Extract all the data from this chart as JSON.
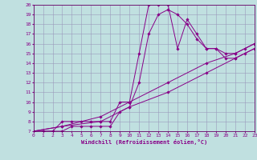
{
  "xlabel": "Windchill (Refroidissement éolien,°C)",
  "bg_color": "#c0e0e0",
  "line_color": "#880088",
  "grid_color": "#9999bb",
  "spine_color": "#660066",
  "xmin": 0,
  "xmax": 23,
  "ymin": 7,
  "ymax": 20,
  "lines": [
    {
      "x": [
        0,
        1,
        2,
        3,
        4,
        5,
        6,
        7,
        8,
        9,
        10,
        11,
        12,
        13,
        14,
        15,
        16,
        17,
        18,
        19,
        20,
        21,
        22,
        23
      ],
      "y": [
        7,
        7,
        7,
        8,
        8,
        8,
        8,
        8,
        8,
        10,
        10,
        15,
        20,
        20,
        20,
        15.5,
        18.5,
        17,
        15.5,
        15.5,
        15,
        15,
        15.5,
        16
      ]
    },
    {
      "x": [
        0,
        1,
        2,
        3,
        4,
        5,
        6,
        7,
        8,
        9,
        10,
        11,
        12,
        13,
        14,
        15,
        16,
        17,
        18,
        19,
        20,
        21,
        22,
        23
      ],
      "y": [
        7,
        7,
        7,
        7,
        7.5,
        7.5,
        7.5,
        7.5,
        7.5,
        9,
        9.5,
        12,
        17,
        19,
        19.5,
        19,
        18,
        16.5,
        15.5,
        15.5,
        14.5,
        14.5,
        15,
        15.5
      ]
    },
    {
      "x": [
        0,
        3,
        7,
        10,
        14,
        18,
        21,
        23
      ],
      "y": [
        7,
        7.5,
        8,
        9.5,
        11,
        13,
        14.5,
        15.5
      ]
    },
    {
      "x": [
        0,
        3,
        7,
        10,
        14,
        18,
        21,
        23
      ],
      "y": [
        7,
        7.5,
        8.5,
        10,
        12,
        14,
        15,
        16
      ]
    }
  ],
  "yticks": [
    7,
    8,
    9,
    10,
    11,
    12,
    13,
    14,
    15,
    16,
    17,
    18,
    19,
    20
  ],
  "xticks": [
    0,
    1,
    2,
    3,
    4,
    5,
    6,
    7,
    8,
    9,
    10,
    11,
    12,
    13,
    14,
    15,
    16,
    17,
    18,
    19,
    20,
    21,
    22,
    23
  ]
}
